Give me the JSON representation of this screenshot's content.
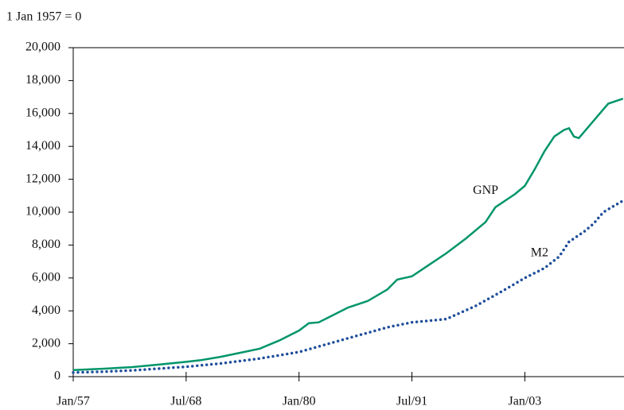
{
  "chart_data": {
    "type": "line",
    "y_axis_label": "1 Jan 1957 = 0",
    "xlim": [
      1957,
      2013.1
    ],
    "xticks": [
      {
        "value": 1957,
        "label": "Jan/57"
      },
      {
        "value": 1968.5,
        "label": "Jul/68"
      },
      {
        "value": 1980,
        "label": "Jan/80"
      },
      {
        "value": 1991.5,
        "label": "Jul/91"
      },
      {
        "value": 2003,
        "label": "Jan/03"
      }
    ],
    "ylim": [
      0,
      20000
    ],
    "yticks": [
      {
        "value": 0,
        "label": "0"
      },
      {
        "value": 2000,
        "label": "2,000"
      },
      {
        "value": 4000,
        "label": "4,000"
      },
      {
        "value": 6000,
        "label": "6,000"
      },
      {
        "value": 8000,
        "label": "8,000"
      },
      {
        "value": 10000,
        "label": "10,000"
      },
      {
        "value": 12000,
        "label": "12,000"
      },
      {
        "value": 14000,
        "label": "14,000"
      },
      {
        "value": 16000,
        "label": "16,000"
      },
      {
        "value": 18000,
        "label": "18,000"
      },
      {
        "value": 20000,
        "label": "20,000"
      }
    ],
    "grid": false,
    "series": [
      {
        "name": "GNP",
        "color": "#00956a",
        "style": "solid",
        "x": [
          1957,
          1960,
          1963,
          1966,
          1968.5,
          1970,
          1972,
          1974,
          1976,
          1978,
          1980,
          1981,
          1982,
          1983,
          1985,
          1987,
          1989,
          1990,
          1991.5,
          1993,
          1995,
          1997,
          1999,
          2000,
          2001,
          2002,
          2003,
          2004,
          2005,
          2006,
          2007,
          2007.5,
          2008,
          2008.5,
          2009.5,
          2010.5,
          2011.5,
          2013
        ],
        "values": [
          400,
          480,
          580,
          750,
          900,
          1000,
          1200,
          1450,
          1700,
          2200,
          2800,
          3250,
          3300,
          3600,
          4200,
          4600,
          5300,
          5900,
          6100,
          6700,
          7500,
          8400,
          9400,
          10300,
          10700,
          11100,
          11600,
          12600,
          13700,
          14600,
          15000,
          15100,
          14600,
          14500,
          15200,
          15900,
          16600,
          16900
        ],
        "label_at": [
          1999,
          11300
        ]
      },
      {
        "name": "M2",
        "color": "#1f4e9a",
        "style": "dotted",
        "x": [
          1957,
          1960,
          1963,
          1966,
          1968.5,
          1972,
          1976,
          1980,
          1983,
          1986,
          1989,
          1991.5,
          1995,
          1998,
          2001,
          2003,
          2005,
          2006.5,
          2007.5,
          2009,
          2010,
          2011,
          2013
        ],
        "values": [
          250,
          300,
          380,
          500,
          600,
          800,
          1100,
          1500,
          2000,
          2500,
          3000,
          3300,
          3500,
          4300,
          5300,
          6000,
          6600,
          7300,
          8200,
          8800,
          9300,
          10000,
          10700
        ],
        "label_at": [
          2004.5,
          7500
        ]
      }
    ]
  }
}
